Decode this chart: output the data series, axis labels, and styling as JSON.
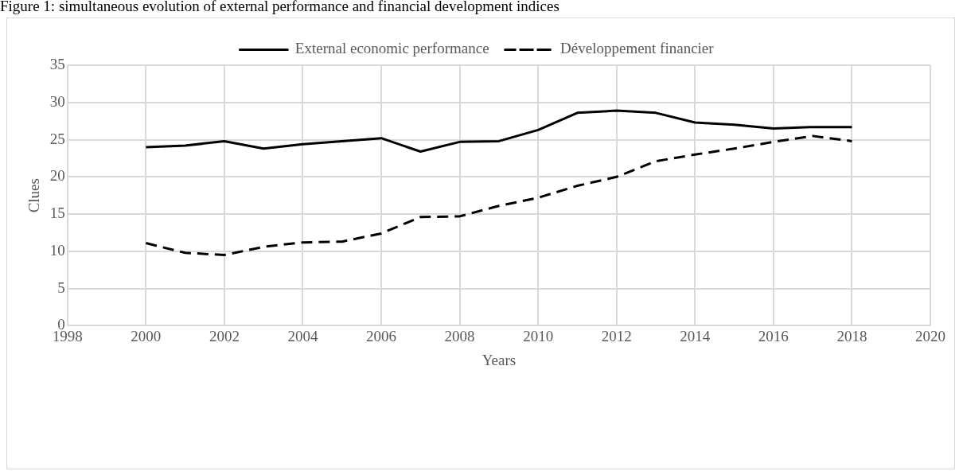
{
  "chart_data": {
    "type": "line",
    "title": "Figure 1: simultaneous evolution of external performance and financial development indices",
    "xlabel": "Years",
    "ylabel": "Clues",
    "x": [
      2000,
      2001,
      2002,
      2003,
      2004,
      2005,
      2006,
      2007,
      2008,
      2009,
      2010,
      2011,
      2012,
      2013,
      2014,
      2015,
      2016,
      2017,
      2018
    ],
    "series": [
      {
        "name": "External economic performance",
        "color": "#000000",
        "line_style": "solid",
        "values": [
          24.0,
          24.2,
          24.8,
          23.8,
          24.4,
          24.8,
          25.2,
          23.4,
          24.7,
          24.8,
          26.3,
          28.6,
          28.9,
          28.6,
          27.3,
          27.0,
          26.5,
          26.7,
          26.7
        ]
      },
      {
        "name": "Développement financier",
        "color": "#000000",
        "line_style": "dashed",
        "values": [
          11.1,
          9.8,
          9.5,
          10.6,
          11.2,
          11.3,
          12.4,
          14.6,
          14.7,
          16.1,
          17.2,
          18.8,
          20.0,
          22.1,
          23.0,
          23.8,
          24.7,
          25.5,
          24.8
        ]
      }
    ],
    "xlim": [
      1998,
      2020
    ],
    "xticks": [
      1998,
      2000,
      2002,
      2004,
      2006,
      2008,
      2010,
      2012,
      2014,
      2016,
      2018,
      2020
    ],
    "ylim": [
      0,
      35
    ],
    "yticks": [
      0,
      5,
      10,
      15,
      20,
      25,
      30,
      35
    ],
    "grid": true,
    "legend": "top",
    "marker": "none"
  }
}
